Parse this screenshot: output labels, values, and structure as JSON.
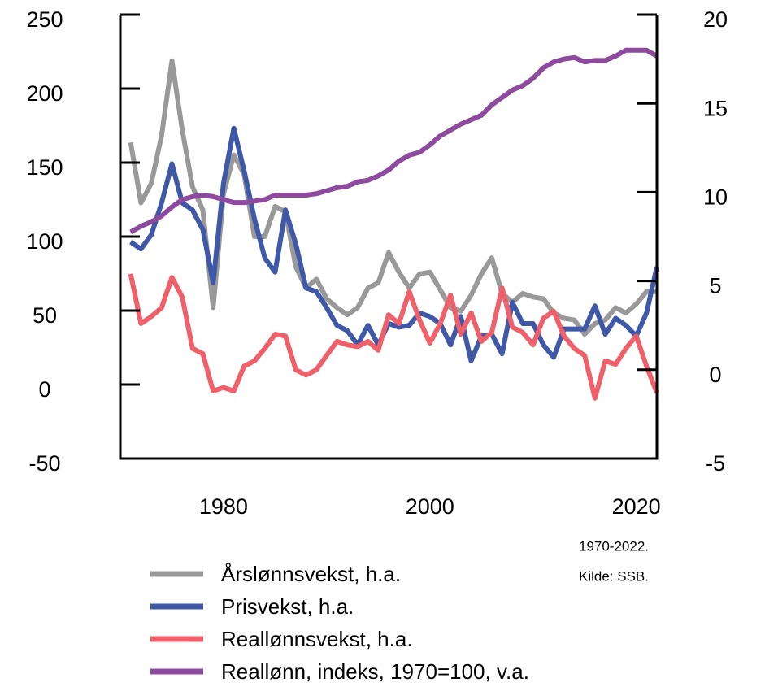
{
  "chart_data": {
    "type": "line",
    "x": [
      1971,
      1972,
      1973,
      1974,
      1975,
      1976,
      1977,
      1978,
      1979,
      1980,
      1981,
      1982,
      1983,
      1984,
      1985,
      1986,
      1987,
      1988,
      1989,
      1990,
      1991,
      1992,
      1993,
      1994,
      1995,
      1996,
      1997,
      1998,
      1999,
      2000,
      2001,
      2002,
      2003,
      2004,
      2005,
      2006,
      2007,
      2008,
      2009,
      2010,
      2011,
      2012,
      2013,
      2014,
      2015,
      2016,
      2017,
      2018,
      2019,
      2020,
      2021,
      2022
    ],
    "series": [
      {
        "name": "Årslønnsvekst, h.a.",
        "color": "#999999",
        "axis": "y2",
        "values": [
          12.8,
          9.4,
          10.5,
          13.2,
          17.4,
          13.5,
          10.3,
          9.0,
          3.5,
          9.9,
          12.1,
          11.0,
          7.5,
          7.5,
          9.2,
          8.9,
          5.8,
          4.6,
          5.1,
          4.0,
          3.5,
          3.1,
          3.5,
          4.6,
          4.9,
          6.6,
          5.5,
          4.6,
          5.4,
          5.5,
          4.5,
          3.5,
          3.3,
          4.2,
          5.4,
          6.3,
          4.3,
          3.8,
          4.3,
          4.1,
          4.0,
          3.2,
          2.9,
          2.8,
          2.0,
          2.6,
          2.8,
          3.5,
          3.2,
          3.7,
          4.4,
          4.4
        ]
      },
      {
        "name": "Prisvekst, h.a.",
        "color": "#3f58a8",
        "axis": "y2",
        "values": [
          7.2,
          6.8,
          7.6,
          9.4,
          11.6,
          9.4,
          9.0,
          7.9,
          4.9,
          10.5,
          13.6,
          11.2,
          8.5,
          6.3,
          5.5,
          9.0,
          7.1,
          4.6,
          4.4,
          3.5,
          2.5,
          2.2,
          1.4,
          2.5,
          1.4,
          2.6,
          2.4,
          2.5,
          3.2,
          3.0,
          2.6,
          1.4,
          3.0,
          0.5,
          1.9,
          2.0,
          0.9,
          3.8,
          2.6,
          2.6,
          1.4,
          0.7,
          2.3,
          2.3,
          2.3,
          3.6,
          2.0,
          2.9,
          2.5,
          1.9,
          3.2,
          5.8
        ]
      },
      {
        "name": "Reallønnsvekst, h.a.",
        "color": "#f0606a",
        "axis": "y2",
        "values": [
          5.4,
          2.6,
          3.0,
          3.5,
          5.2,
          4.1,
          1.2,
          0.9,
          -1.2,
          -1.0,
          -1.2,
          0.2,
          0.5,
          1.2,
          2.0,
          1.9,
          0.0,
          -0.3,
          0.0,
          0.8,
          1.6,
          1.4,
          1.3,
          1.6,
          1.1,
          3.1,
          2.6,
          4.4,
          2.8,
          1.5,
          2.6,
          4.2,
          2.0,
          3.2,
          1.6,
          2.1,
          4.6,
          2.4,
          2.1,
          1.4,
          2.9,
          3.3,
          1.9,
          1.2,
          0.8,
          -1.6,
          0.5,
          0.3,
          1.2,
          1.9,
          0.2,
          -1.3
        ]
      },
      {
        "name": "Reallønn, indeks, 1970=100, v.a.",
        "color": "#8e4a9e",
        "axis": "y",
        "values": [
          103,
          107,
          110,
          114,
          120,
          125,
          127,
          128,
          127,
          125,
          123,
          123,
          124,
          125,
          128,
          128,
          128,
          128,
          129,
          131,
          133,
          134,
          137,
          138,
          141,
          145,
          151,
          155,
          157,
          162,
          168,
          172,
          176,
          179,
          182,
          189,
          194,
          199,
          202,
          207,
          214,
          218,
          220,
          221,
          218,
          219,
          219,
          222,
          226,
          226,
          226,
          222
        ]
      }
    ],
    "xlim": [
      1970,
      2022
    ],
    "xticks": [
      1980,
      2000,
      2020
    ],
    "ylim": [
      -50,
      250
    ],
    "yticks": [
      -50,
      0,
      50,
      100,
      150,
      200,
      250
    ],
    "y2lim": [
      -5,
      20
    ],
    "y2ticks": [
      -5,
      0,
      5,
      10,
      15,
      20
    ],
    "legend": "bottom",
    "notes": [
      "1970-2022.",
      "Kilde: SSB."
    ]
  }
}
